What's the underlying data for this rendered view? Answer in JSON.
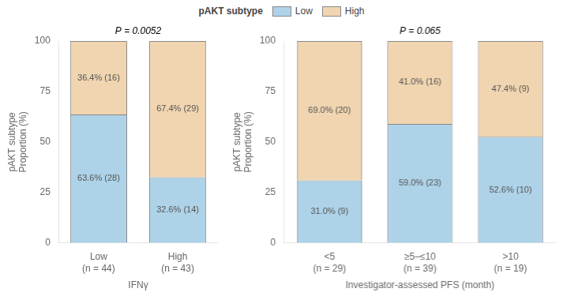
{
  "chart_data": [
    {
      "type": "bar",
      "stacked": true,
      "data_labels": true,
      "grid": false,
      "legend": "top",
      "legend_title": "pAKT subtype",
      "x_label": "IFNγ",
      "y_label": "pAKT subtype\nProportion (%)",
      "annotations": [
        "P = 0.0052"
      ],
      "categories": [
        "Low\n(n = 44)",
        "High\n(n = 43)"
      ],
      "series": [
        {
          "name": "Low",
          "color": "#aed3e8",
          "values": [
            63.6,
            32.6
          ],
          "value_labels": [
            "63.6% (28)",
            "32.6% (14)"
          ]
        },
        {
          "name": "High",
          "color": "#f0d5b0",
          "values": [
            36.4,
            67.4
          ],
          "value_labels": [
            "36.4% (16)",
            "67.4% (29)"
          ]
        }
      ],
      "ylim": [
        0,
        100
      ],
      "yticks": [
        0,
        25,
        50,
        75,
        100
      ]
    },
    {
      "type": "bar",
      "stacked": true,
      "data_labels": true,
      "grid": false,
      "x_label": "Investigator-assessed PFS (month)",
      "y_label": "pAKT subtype\nProportion (%)",
      "annotations": [
        "P = 0.065"
      ],
      "categories": [
        "<5\n(n = 29)",
        "≥5–≤10\n(n = 39)",
        ">10\n(n = 19)"
      ],
      "series": [
        {
          "name": "Low",
          "color": "#aed3e8",
          "values": [
            31.0,
            59.0,
            52.6
          ],
          "value_labels": [
            "31.0% (9)",
            "59.0% (23)",
            "52.6% (10)"
          ]
        },
        {
          "name": "High",
          "color": "#f0d5b0",
          "values": [
            69.0,
            41.0,
            47.4
          ],
          "value_labels": [
            "69.0% (20)",
            "41.0% (16)",
            "47.4% (9)"
          ]
        }
      ],
      "ylim": [
        0,
        100
      ],
      "yticks": [
        0,
        25,
        50,
        75,
        100
      ]
    }
  ]
}
